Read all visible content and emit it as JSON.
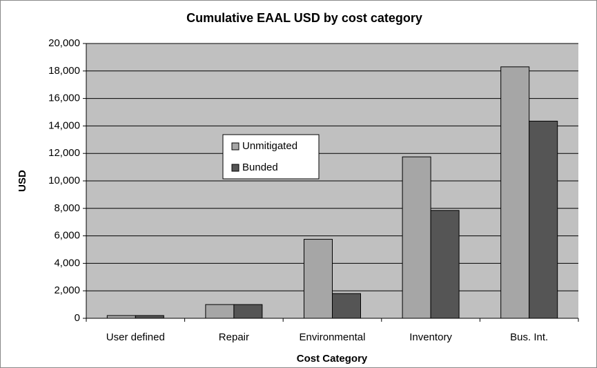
{
  "chart_data": {
    "type": "bar",
    "title": "Cumulative EAAL USD by cost category",
    "x_label": "Cost Category",
    "y_label": "USD",
    "categories": [
      "User defined",
      "Repair",
      "Environmental",
      "Inventory",
      "Bus. Int."
    ],
    "series": [
      {
        "name": "Unmitigated",
        "color": "#a6a6a6",
        "values": [
          200,
          1000,
          5750,
          11750,
          18300
        ]
      },
      {
        "name": "Bunded",
        "color": "#555555",
        "values": [
          200,
          1000,
          1800,
          7850,
          14350
        ]
      }
    ],
    "ylim": [
      0,
      20000
    ],
    "yticks": [
      0,
      {
        "value": 2000,
        "label": "2,000"
      },
      {
        "value": 4000,
        "label": "4,000"
      },
      {
        "value": 6000,
        "label": "6,000"
      },
      {
        "value": 8000,
        "label": "8,000"
      },
      {
        "value": 10000,
        "label": "10,000"
      },
      {
        "value": 12000,
        "label": "12,000"
      },
      {
        "value": 14000,
        "label": "14,000"
      },
      {
        "value": 16000,
        "label": "16,000"
      },
      {
        "value": 18000,
        "label": "18,000"
      },
      {
        "value": 20000,
        "label": "20,000"
      }
    ],
    "grid": true
  }
}
